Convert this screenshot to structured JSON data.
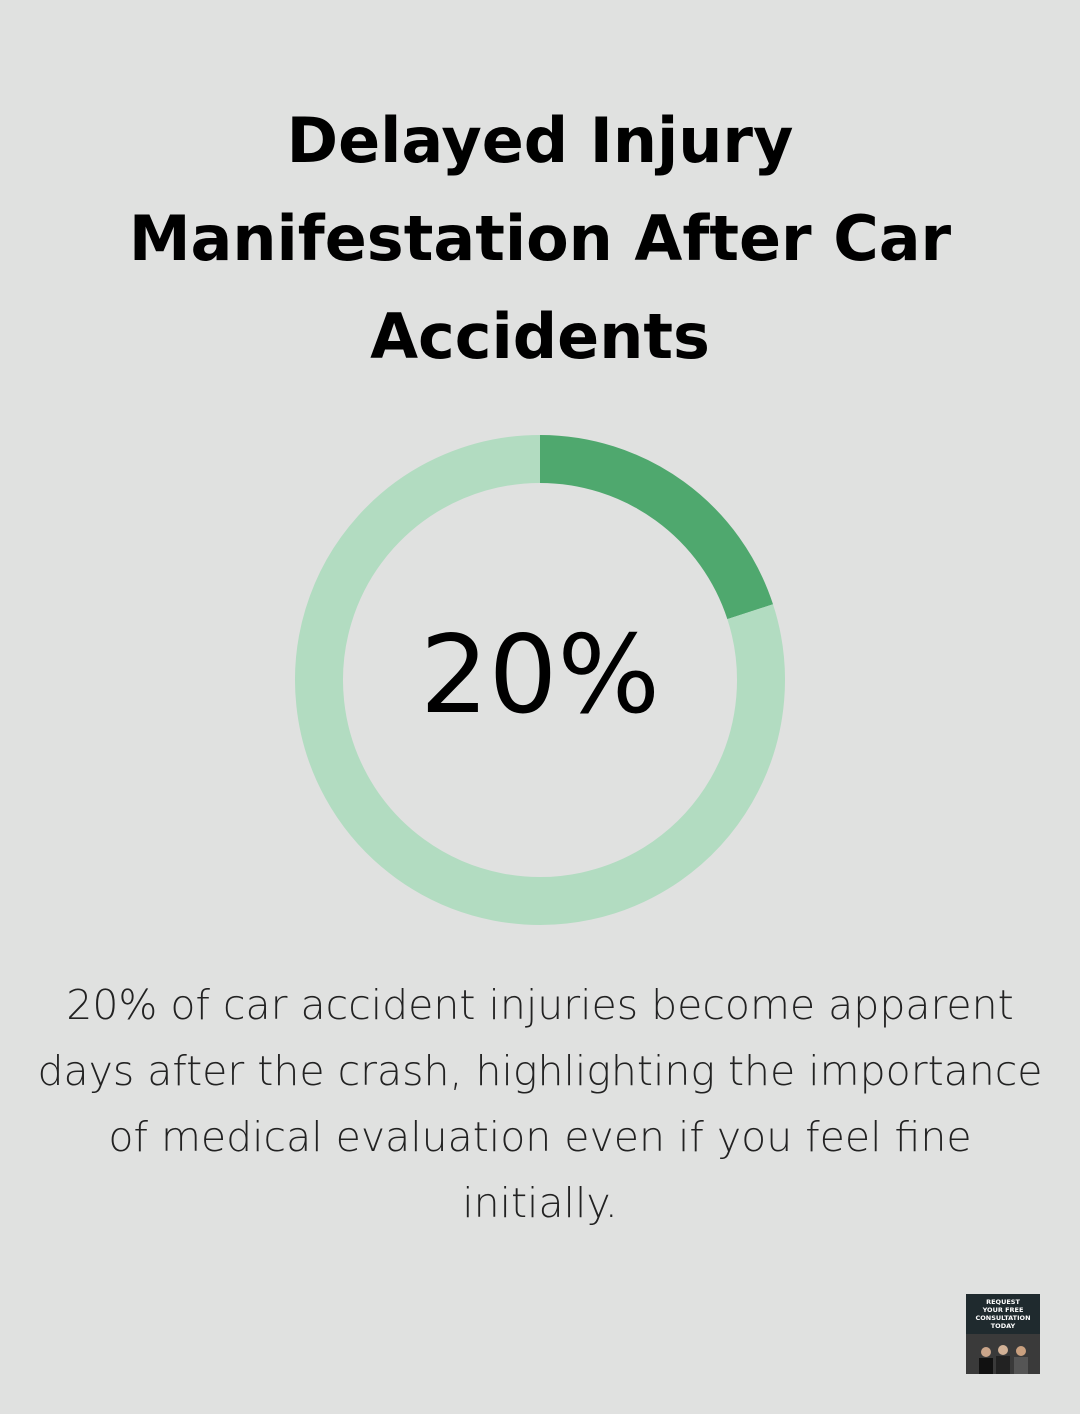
{
  "chart_data": {
    "type": "donut",
    "title": "Delayed Injury Manifestation After Car Accidents",
    "values": [
      20,
      80
    ],
    "value_labels": [
      "20%",
      null
    ],
    "colors": [
      "#4fa86e",
      "#b2dcc1"
    ],
    "description": "20% of car accident injuries become apparent days after the crash, highlighting the importance of medical evaluation even if you feel fine initially."
  },
  "badge": {
    "lines": [
      "REQUEST",
      "YOUR FREE",
      "CONSULTATION",
      "TODAY"
    ]
  }
}
